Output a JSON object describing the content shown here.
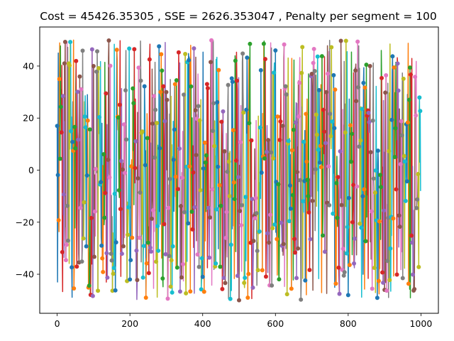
{
  "chart_data": {
    "type": "line",
    "title": "Cost = 45426.35305 , SSE = 2626.353047 , Penalty per segment = 100",
    "xlabel": "",
    "ylabel": "",
    "xlim": [
      -48,
      1048
    ],
    "ylim": [
      -55,
      55
    ],
    "xticks": [
      0,
      200,
      400,
      600,
      800,
      1000
    ],
    "xtick_labels": [
      "0",
      "200",
      "400",
      "600",
      "800",
      "1000"
    ],
    "yticks": [
      -40,
      -20,
      0,
      20,
      40
    ],
    "ytick_labels": [
      "−40",
      "−20",
      "0",
      "20",
      "40"
    ],
    "n_points": 1000,
    "value_range": [
      -50,
      50
    ],
    "segment_length": 4,
    "series_colors": [
      "#1f77b4",
      "#ff7f0e",
      "#2ca02c",
      "#d62728",
      "#9467bd",
      "#8c564b",
      "#e377c2",
      "#7f7f7f",
      "#bcbd22",
      "#17becf"
    ],
    "sample_points": [
      {
        "x": 0,
        "y": 17
      },
      {
        "x": 1,
        "y": -43
      },
      {
        "x": 3,
        "y": 45
      },
      {
        "x": 6,
        "y": 35
      },
      {
        "x": 20,
        "y": 41
      },
      {
        "x": 45,
        "y": 50
      },
      {
        "x": 100,
        "y": 40
      },
      {
        "x": 200,
        "y": -42
      },
      {
        "x": 300,
        "y": 30
      },
      {
        "x": 400,
        "y": -41
      },
      {
        "x": 500,
        "y": -50
      },
      {
        "x": 600,
        "y": 46
      },
      {
        "x": 700,
        "y": 37
      },
      {
        "x": 800,
        "y": -48
      },
      {
        "x": 900,
        "y": -46
      },
      {
        "x": 999,
        "y": -8
      }
    ]
  }
}
